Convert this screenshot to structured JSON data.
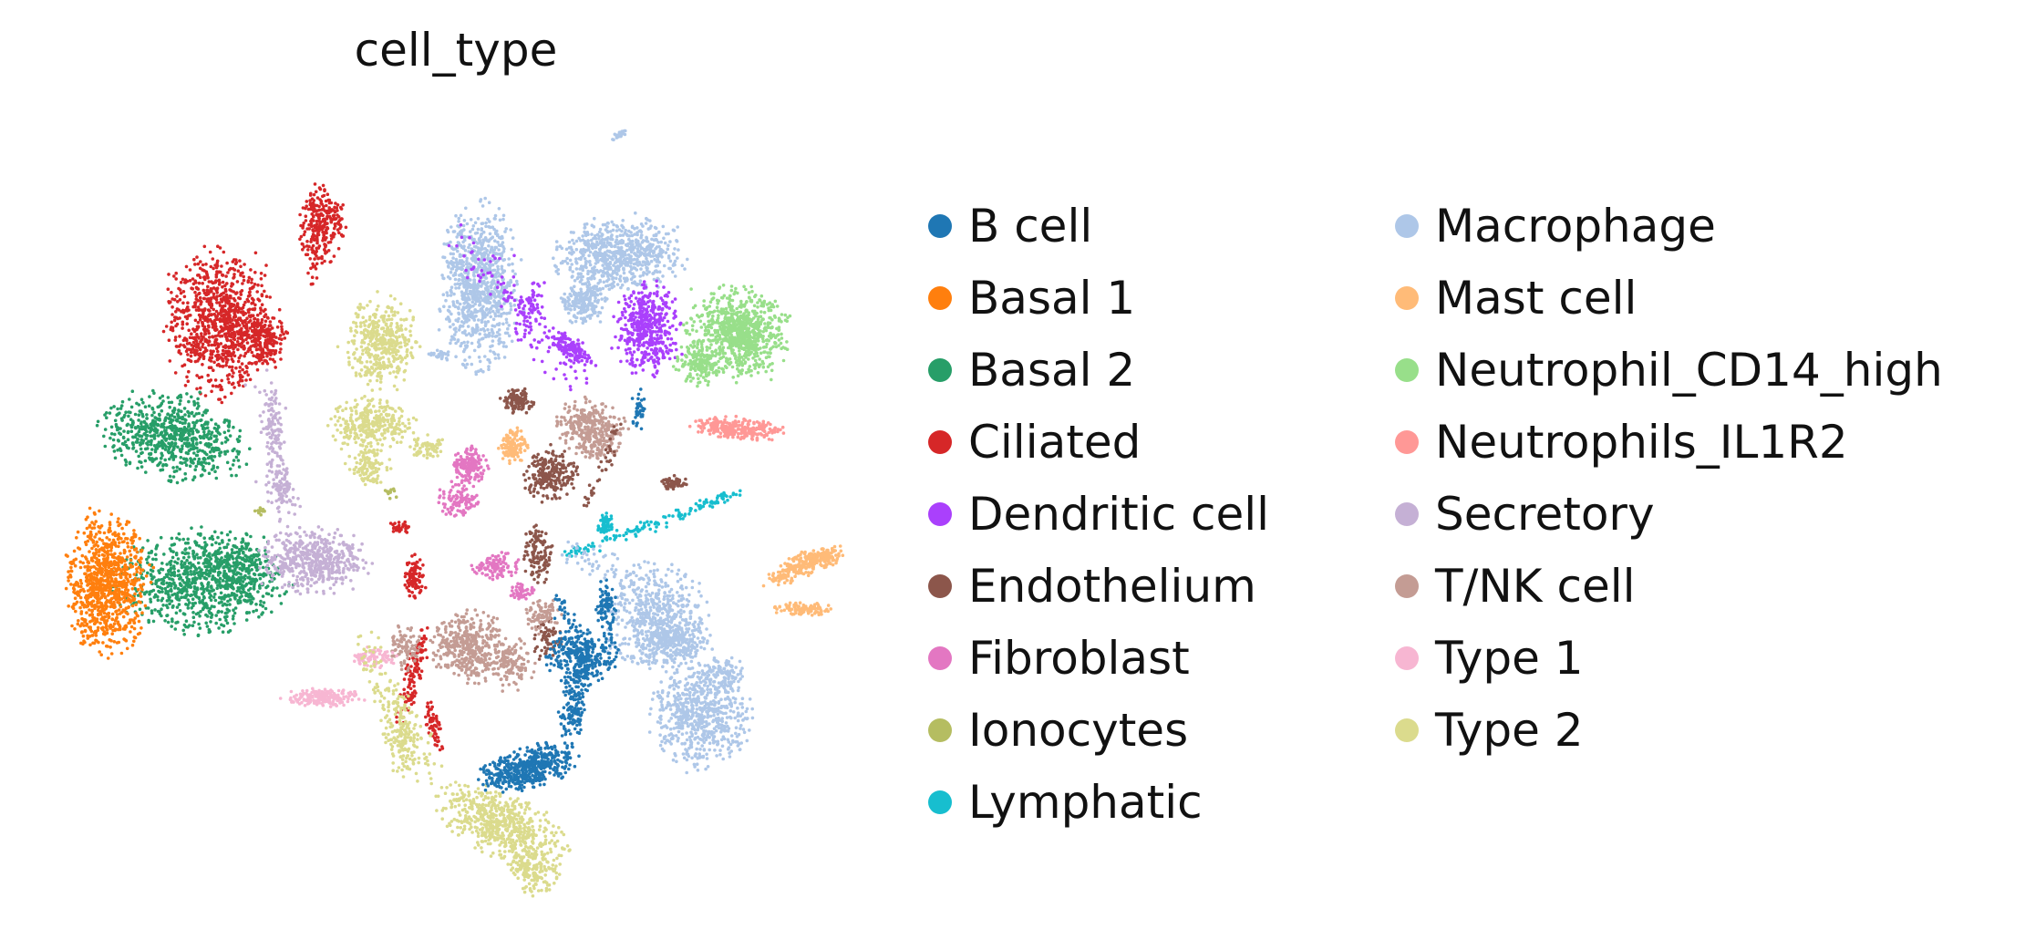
{
  "chart_data": {
    "type": "scatter",
    "title": "cell_type",
    "xlabel": "",
    "ylabel": "",
    "grid": false,
    "axes_visible": false,
    "legend_position": "right",
    "legend_columns": 2,
    "series": [
      {
        "name": "B cell",
        "color": "#1f77b4"
      },
      {
        "name": "Basal 1",
        "color": "#ff7f0e"
      },
      {
        "name": "Basal 2",
        "color": "#279e68"
      },
      {
        "name": "Ciliated",
        "color": "#d62728"
      },
      {
        "name": "Dendritic cell",
        "color": "#aa40fc"
      },
      {
        "name": "Endothelium",
        "color": "#8c564b"
      },
      {
        "name": "Fibroblast",
        "color": "#e377c2"
      },
      {
        "name": "Ionocytes",
        "color": "#b5bd61"
      },
      {
        "name": "Lymphatic",
        "color": "#17becf"
      },
      {
        "name": "Macrophage",
        "color": "#aec7e8"
      },
      {
        "name": "Mast cell",
        "color": "#ffbb78"
      },
      {
        "name": "Neutrophil_CD14_high",
        "color": "#98df8a"
      },
      {
        "name": "Neutrophils_IL1R2",
        "color": "#ff9896"
      },
      {
        "name": "Secretory",
        "color": "#c5b0d5"
      },
      {
        "name": "T/NK cell",
        "color": "#c49c94"
      },
      {
        "name": "Type 1",
        "color": "#f7b6d2"
      },
      {
        "name": "Type 2",
        "color": "#dbdb8d"
      }
    ]
  }
}
